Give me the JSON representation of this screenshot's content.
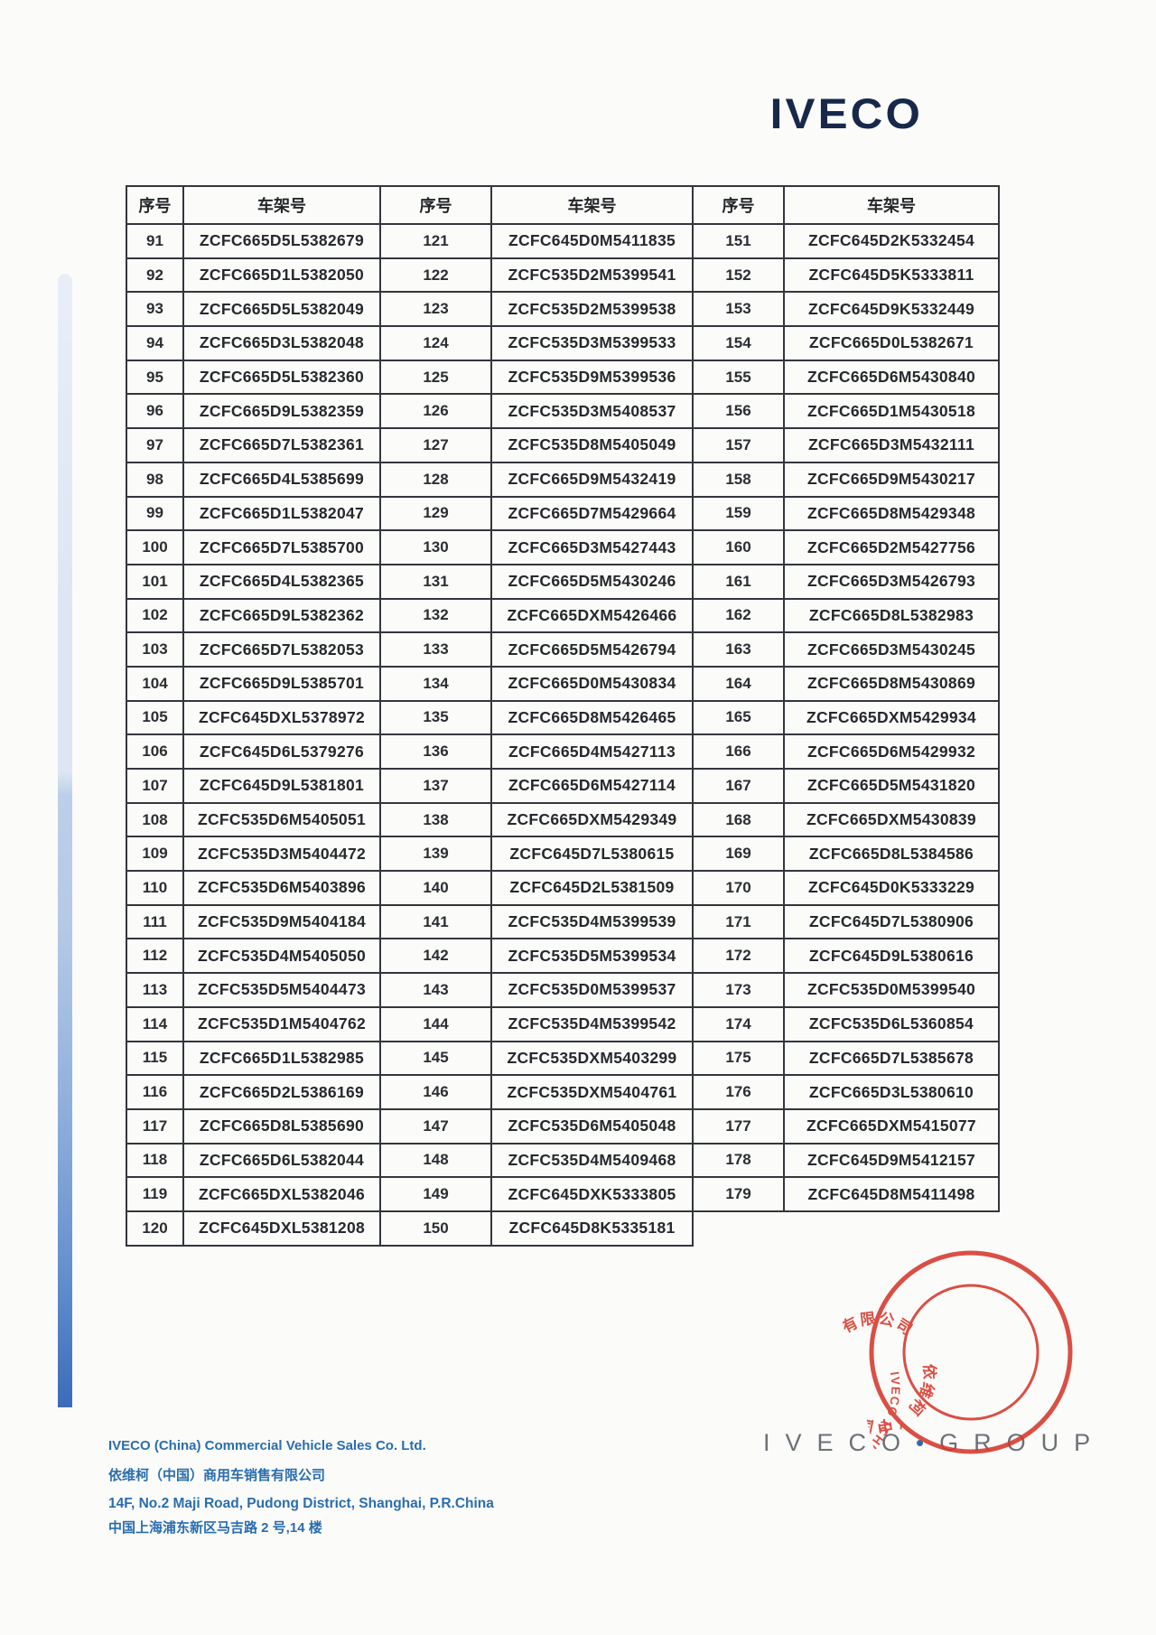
{
  "colors": {
    "footer_blue": "#2a6dae",
    "logo_navy": "#17284a",
    "stamp_red": "#d6382c",
    "group_grey": "#6d7176",
    "accent_bar_top": "#e9eef6",
    "accent_bar_bottom": "#3c6cba",
    "table_border": "#33363b"
  },
  "logo": {
    "text": "IVECO"
  },
  "table": {
    "col_no_label": "序号",
    "col_vin_label": "车架号",
    "sections": [
      {
        "rows": [
          {
            "no": "91",
            "vin": "ZCFC665D5L5382679"
          },
          {
            "no": "92",
            "vin": "ZCFC665D1L5382050"
          },
          {
            "no": "93",
            "vin": "ZCFC665D5L5382049"
          },
          {
            "no": "94",
            "vin": "ZCFC665D3L5382048"
          },
          {
            "no": "95",
            "vin": "ZCFC665D5L5382360"
          },
          {
            "no": "96",
            "vin": "ZCFC665D9L5382359"
          },
          {
            "no": "97",
            "vin": "ZCFC665D7L5382361"
          },
          {
            "no": "98",
            "vin": "ZCFC665D4L5385699"
          },
          {
            "no": "99",
            "vin": "ZCFC665D1L5382047"
          },
          {
            "no": "100",
            "vin": "ZCFC665D7L5385700"
          },
          {
            "no": "101",
            "vin": "ZCFC665D4L5382365"
          },
          {
            "no": "102",
            "vin": "ZCFC665D9L5382362"
          },
          {
            "no": "103",
            "vin": "ZCFC665D7L5382053"
          },
          {
            "no": "104",
            "vin": "ZCFC665D9L5385701"
          },
          {
            "no": "105",
            "vin": "ZCFC645DXL5378972"
          },
          {
            "no": "106",
            "vin": "ZCFC645D6L5379276"
          },
          {
            "no": "107",
            "vin": "ZCFC645D9L5381801"
          },
          {
            "no": "108",
            "vin": "ZCFC535D6M5405051"
          },
          {
            "no": "109",
            "vin": "ZCFC535D3M5404472"
          },
          {
            "no": "110",
            "vin": "ZCFC535D6M5403896"
          },
          {
            "no": "111",
            "vin": "ZCFC535D9M5404184"
          },
          {
            "no": "112",
            "vin": "ZCFC535D4M5405050"
          },
          {
            "no": "113",
            "vin": "ZCFC535D5M5404473"
          },
          {
            "no": "114",
            "vin": "ZCFC535D1M5404762"
          },
          {
            "no": "115",
            "vin": "ZCFC665D1L5382985"
          },
          {
            "no": "116",
            "vin": "ZCFC665D2L5386169"
          },
          {
            "no": "117",
            "vin": "ZCFC665D8L5385690"
          },
          {
            "no": "118",
            "vin": "ZCFC665D6L5382044"
          },
          {
            "no": "119",
            "vin": "ZCFC665DXL5382046"
          },
          {
            "no": "120",
            "vin": "ZCFC645DXL5381208"
          }
        ]
      },
      {
        "rows": [
          {
            "no": "121",
            "vin": "ZCFC645D0M5411835"
          },
          {
            "no": "122",
            "vin": "ZCFC535D2M5399541"
          },
          {
            "no": "123",
            "vin": "ZCFC535D2M5399538"
          },
          {
            "no": "124",
            "vin": "ZCFC535D3M5399533"
          },
          {
            "no": "125",
            "vin": "ZCFC535D9M5399536"
          },
          {
            "no": "126",
            "vin": "ZCFC535D3M5408537"
          },
          {
            "no": "127",
            "vin": "ZCFC535D8M5405049"
          },
          {
            "no": "128",
            "vin": "ZCFC665D9M5432419"
          },
          {
            "no": "129",
            "vin": "ZCFC665D7M5429664"
          },
          {
            "no": "130",
            "vin": "ZCFC665D3M5427443"
          },
          {
            "no": "131",
            "vin": "ZCFC665D5M5430246"
          },
          {
            "no": "132",
            "vin": "ZCFC665DXM5426466"
          },
          {
            "no": "133",
            "vin": "ZCFC665D5M5426794"
          },
          {
            "no": "134",
            "vin": "ZCFC665D0M5430834"
          },
          {
            "no": "135",
            "vin": "ZCFC665D8M5426465"
          },
          {
            "no": "136",
            "vin": "ZCFC665D4M5427113"
          },
          {
            "no": "137",
            "vin": "ZCFC665D6M5427114"
          },
          {
            "no": "138",
            "vin": "ZCFC665DXM5429349"
          },
          {
            "no": "139",
            "vin": "ZCFC645D7L5380615"
          },
          {
            "no": "140",
            "vin": "ZCFC645D2L5381509"
          },
          {
            "no": "141",
            "vin": "ZCFC535D4M5399539"
          },
          {
            "no": "142",
            "vin": "ZCFC535D5M5399534"
          },
          {
            "no": "143",
            "vin": "ZCFC535D0M5399537"
          },
          {
            "no": "144",
            "vin": "ZCFC535D4M5399542"
          },
          {
            "no": "145",
            "vin": "ZCFC535DXM5403299"
          },
          {
            "no": "146",
            "vin": "ZCFC535DXM5404761"
          },
          {
            "no": "147",
            "vin": "ZCFC535D6M5405048"
          },
          {
            "no": "148",
            "vin": "ZCFC535D4M5409468"
          },
          {
            "no": "149",
            "vin": "ZCFC645DXK5333805"
          },
          {
            "no": "150",
            "vin": "ZCFC645D8K5335181"
          }
        ]
      },
      {
        "rows": [
          {
            "no": "151",
            "vin": "ZCFC645D2K5332454"
          },
          {
            "no": "152",
            "vin": "ZCFC645D5K5333811"
          },
          {
            "no": "153",
            "vin": "ZCFC645D9K5332449"
          },
          {
            "no": "154",
            "vin": "ZCFC665D0L5382671"
          },
          {
            "no": "155",
            "vin": "ZCFC665D6M5430840"
          },
          {
            "no": "156",
            "vin": "ZCFC665D1M5430518"
          },
          {
            "no": "157",
            "vin": "ZCFC665D3M5432111"
          },
          {
            "no": "158",
            "vin": "ZCFC665D9M5430217"
          },
          {
            "no": "159",
            "vin": "ZCFC665D8M5429348"
          },
          {
            "no": "160",
            "vin": "ZCFC665D2M5427756"
          },
          {
            "no": "161",
            "vin": "ZCFC665D3M5426793"
          },
          {
            "no": "162",
            "vin": "ZCFC665D8L5382983"
          },
          {
            "no": "163",
            "vin": "ZCFC665D3M5430245"
          },
          {
            "no": "164",
            "vin": "ZCFC665D8M5430869"
          },
          {
            "no": "165",
            "vin": "ZCFC665DXM5429934"
          },
          {
            "no": "166",
            "vin": "ZCFC665D6M5429932"
          },
          {
            "no": "167",
            "vin": "ZCFC665D5M5431820"
          },
          {
            "no": "168",
            "vin": "ZCFC665DXM5430839"
          },
          {
            "no": "169",
            "vin": "ZCFC665D8L5384586"
          },
          {
            "no": "170",
            "vin": "ZCFC645D0K5333229"
          },
          {
            "no": "171",
            "vin": "ZCFC645D7L5380906"
          },
          {
            "no": "172",
            "vin": "ZCFC645D9L5380616"
          },
          {
            "no": "173",
            "vin": "ZCFC535D0M5399540"
          },
          {
            "no": "174",
            "vin": "ZCFC535D6L5360854"
          },
          {
            "no": "175",
            "vin": "ZCFC665D7L5385678"
          },
          {
            "no": "176",
            "vin": "ZCFC665D3L5380610"
          },
          {
            "no": "177",
            "vin": "ZCFC665DXM5415077"
          },
          {
            "no": "178",
            "vin": "ZCFC645D9M5412157"
          },
          {
            "no": "179",
            "vin": "ZCFC645D8M5411498"
          }
        ]
      }
    ]
  },
  "footer": {
    "company_en": "IVECO (China) Commercial Vehicle Sales Co. Ltd.",
    "company_cn": "依维柯（中国）商用车销售有限公司",
    "address_en": "14F, No.2 Maji Road, Pudong District, Shanghai, P.R.China",
    "address_cn": "中国上海浦东新区马吉路 2 号,14 楼"
  },
  "group_logo": {
    "iveco": "IVECO",
    "dot": "•",
    "group": "GROUP"
  },
  "stamp": {
    "outer_text": "IVECO (CHINA) COMMERCIAL VEHICLE SALES CO. LTD",
    "inner_text": "依维柯（中国）商用车销售有限公司"
  }
}
